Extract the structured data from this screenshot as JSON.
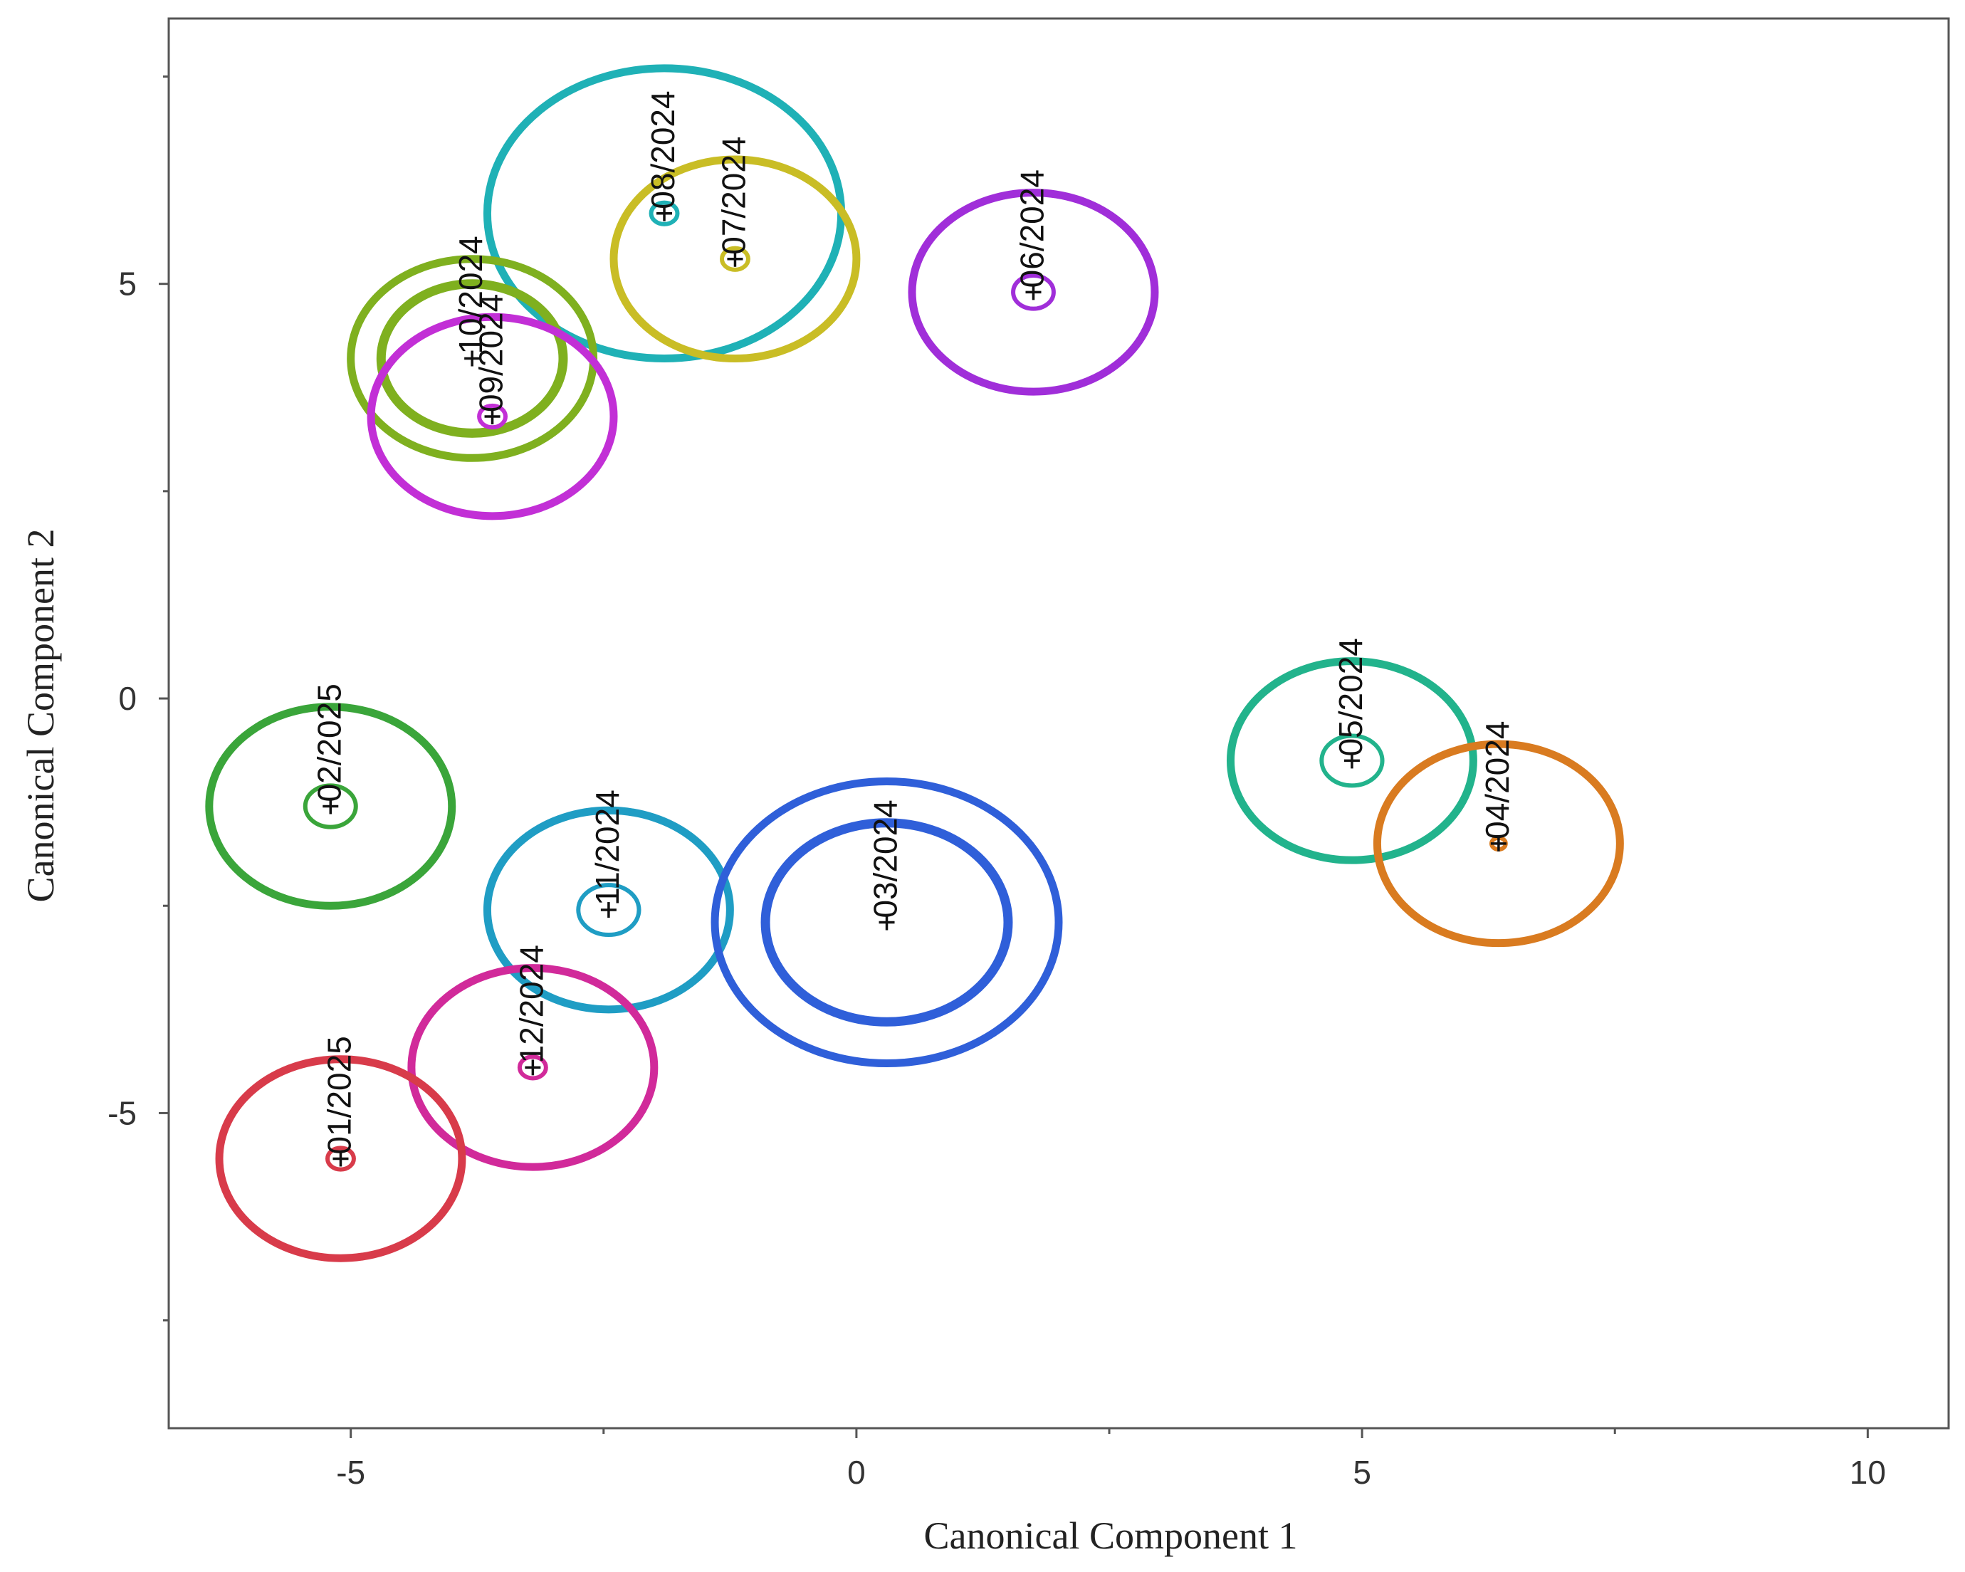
{
  "chart_data": {
    "type": "scatter",
    "xlabel": "Canonical Component 1",
    "ylabel": "Canonical Component 2",
    "xlim": [
      -6.8,
      10.8
    ],
    "ylim": [
      -8.8,
      8.2
    ],
    "xticks": [
      -5,
      0,
      5,
      10
    ],
    "yticks": [
      -5,
      0,
      5
    ],
    "points": [
      {
        "label": "08/2024",
        "x": -1.9,
        "y": 5.85,
        "color": "#1fb1b6",
        "outer_radius": 1.75,
        "inner_radius": 0.13
      },
      {
        "label": "07/2024",
        "x": -1.2,
        "y": 5.3,
        "color": "#c9bd25",
        "outer_radius": 1.2,
        "inner_radius": 0.13
      },
      {
        "label": "06/2024",
        "x": 1.75,
        "y": 4.9,
        "color": "#a02ed9",
        "outer_radius": 1.2,
        "inner_radius": 0.2
      },
      {
        "label": "10/2024",
        "x": -3.8,
        "y": 4.1,
        "color": "#7fb01f",
        "outer_radius": 1.2,
        "inner_radius": 0.9
      },
      {
        "label": "09/2024",
        "x": -3.6,
        "y": 3.4,
        "color": "#c22fd6",
        "outer_radius": 1.2,
        "inner_radius": 0.13
      },
      {
        "label": "05/2024",
        "x": 4.9,
        "y": -0.75,
        "color": "#22b38c",
        "outer_radius": 1.2,
        "inner_radius": 0.3
      },
      {
        "label": "04/2024",
        "x": 6.35,
        "y": -1.75,
        "color": "#d97b20",
        "outer_radius": 1.2,
        "inner_radius": 0.07
      },
      {
        "label": "02/2025",
        "x": -5.2,
        "y": -1.3,
        "color": "#3aa53a",
        "outer_radius": 1.2,
        "inner_radius": 0.25
      },
      {
        "label": "11/2024",
        "x": -2.45,
        "y": -2.55,
        "color": "#1f9dc4",
        "outer_radius": 1.2,
        "inner_radius": 0.3
      },
      {
        "label": "03/2024",
        "x": 0.3,
        "y": -2.7,
        "color": "#2f5fd9",
        "outer_radius": 1.7,
        "inner_radius": 1.2
      },
      {
        "label": "12/2024",
        "x": -3.2,
        "y": -4.45,
        "color": "#d12a9a",
        "outer_radius": 1.2,
        "inner_radius": 0.13
      },
      {
        "label": "01/2025",
        "x": -5.1,
        "y": -5.55,
        "color": "#d83b4a",
        "outer_radius": 1.2,
        "inner_radius": 0.13
      }
    ]
  }
}
